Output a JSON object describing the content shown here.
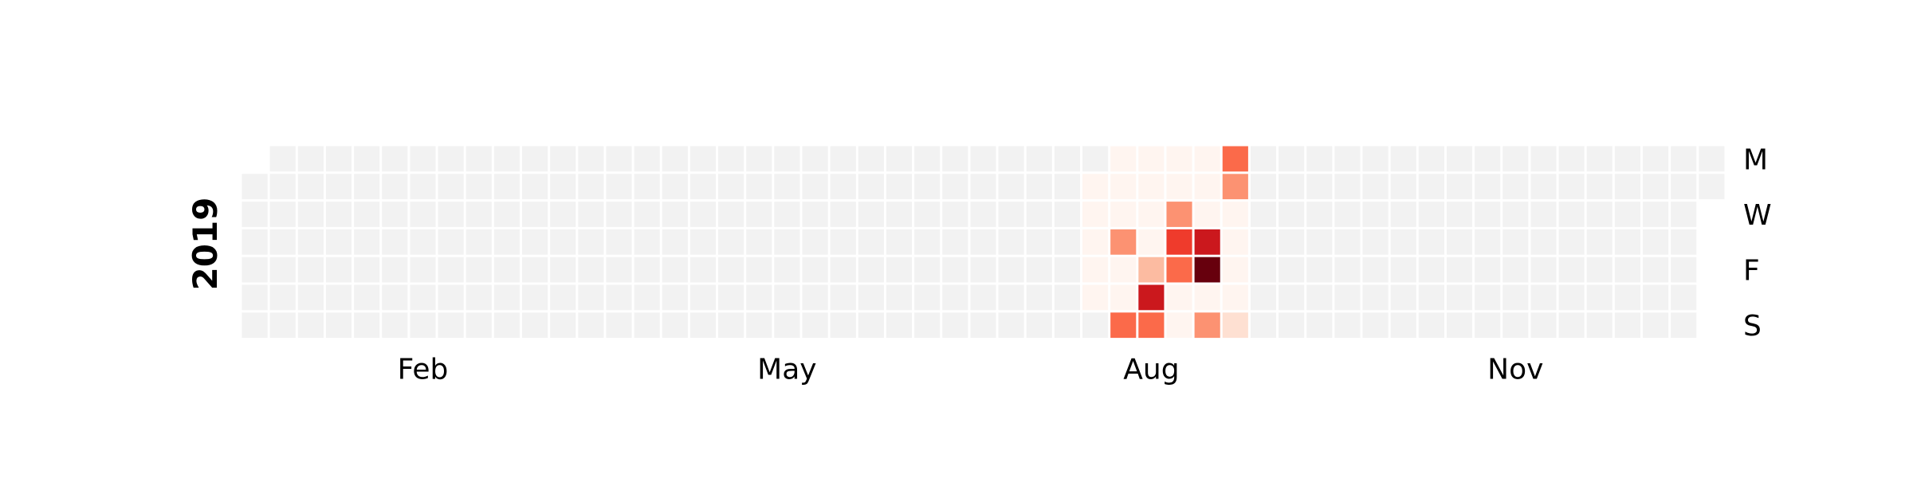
{
  "chart_data": {
    "type": "heatmap",
    "year": "2019",
    "title": "",
    "first_day": "2019-01-01",
    "weeks": 53,
    "row_labels": [
      {
        "day": "Mon",
        "label": "M"
      },
      {
        "day": "Wed",
        "label": "W"
      },
      {
        "day": "Fri",
        "label": "F"
      },
      {
        "day": "Sun",
        "label": "S"
      }
    ],
    "month_labels": [
      {
        "month": "Feb",
        "label": "Feb"
      },
      {
        "month": "May",
        "label": "May"
      },
      {
        "month": "Aug",
        "label": "Aug"
      },
      {
        "month": "Nov",
        "label": "Nov"
      }
    ],
    "colors": {
      "empty": "#f2f2f2",
      "scale": [
        "#fff5f0",
        "#fee0d2",
        "#fcbba1",
        "#fc9272",
        "#fb6a4a",
        "#ef3b2c",
        "#cb181d",
        "#99000d",
        "#67000d"
      ]
    },
    "vmax": 10,
    "values": [
      {
        "date": "2019-07-30",
        "value": 0.3
      },
      {
        "date": "2019-07-31",
        "value": 0.3
      },
      {
        "date": "2019-08-01",
        "value": 0.3
      },
      {
        "date": "2019-08-02",
        "value": 0.3
      },
      {
        "date": "2019-08-03",
        "value": 0.3
      },
      {
        "date": "2019-08-05",
        "value": 0.3
      },
      {
        "date": "2019-08-06",
        "value": 0.3
      },
      {
        "date": "2019-08-07",
        "value": 0.3
      },
      {
        "date": "2019-08-08",
        "value": 3.8
      },
      {
        "date": "2019-08-09",
        "value": 0.3
      },
      {
        "date": "2019-08-10",
        "value": 0.3
      },
      {
        "date": "2019-08-11",
        "value": 4.4
      },
      {
        "date": "2019-08-12",
        "value": 0.3
      },
      {
        "date": "2019-08-13",
        "value": 0.3
      },
      {
        "date": "2019-08-14",
        "value": 0.3
      },
      {
        "date": "2019-08-15",
        "value": 0.3
      },
      {
        "date": "2019-08-16",
        "value": 3.1
      },
      {
        "date": "2019-08-17",
        "value": 7.6
      },
      {
        "date": "2019-08-18",
        "value": 4.4
      },
      {
        "date": "2019-08-19",
        "value": 0.4
      },
      {
        "date": "2019-08-20",
        "value": 0.4
      },
      {
        "date": "2019-08-21",
        "value": 4.0
      },
      {
        "date": "2019-08-22",
        "value": 6.0
      },
      {
        "date": "2019-08-23",
        "value": 5.0
      },
      {
        "date": "2019-08-24",
        "value": 0.3
      },
      {
        "date": "2019-08-25",
        "value": 0.3
      },
      {
        "date": "2019-08-26",
        "value": 0.3
      },
      {
        "date": "2019-08-27",
        "value": 0.3
      },
      {
        "date": "2019-08-28",
        "value": 0.3
      },
      {
        "date": "2019-08-29",
        "value": 7.4
      },
      {
        "date": "2019-08-30",
        "value": 10.0
      },
      {
        "date": "2019-08-31",
        "value": 0.3
      },
      {
        "date": "2019-09-01",
        "value": 3.8
      },
      {
        "date": "2019-09-02",
        "value": 5.2
      },
      {
        "date": "2019-09-03",
        "value": 3.4
      },
      {
        "date": "2019-09-04",
        "value": 0.4
      },
      {
        "date": "2019-09-05",
        "value": 0.4
      },
      {
        "date": "2019-09-06",
        "value": 0.4
      },
      {
        "date": "2019-09-07",
        "value": 0.4
      },
      {
        "date": "2019-09-08",
        "value": 1.0
      }
    ]
  }
}
